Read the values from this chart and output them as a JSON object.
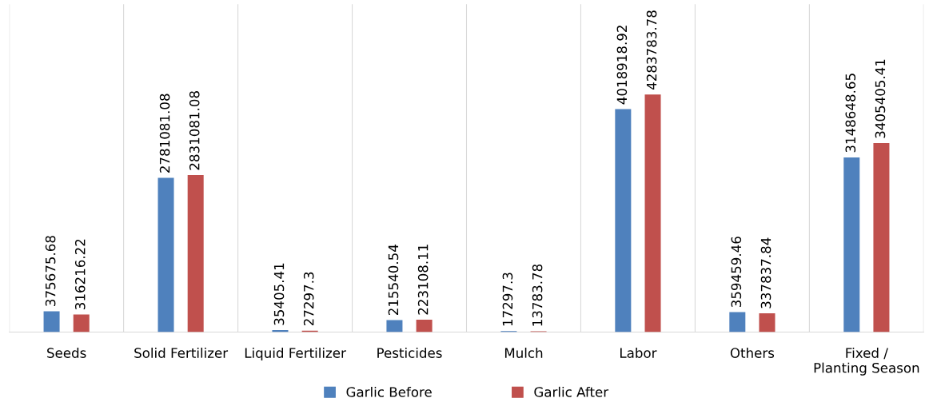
{
  "chart_data": {
    "type": "bar",
    "categories": [
      "Seeds",
      "Solid Fertilizer",
      "Liquid Fertilizer",
      "Pesticides",
      "Mulch",
      "Labor",
      "Others",
      "Fixed / Planting Season"
    ],
    "series": [
      {
        "name": "Garlic Before",
        "color": "#4f81bd",
        "values": [
          375675.68,
          2781081.08,
          35405.41,
          215540.54,
          17297.3,
          4018918.92,
          359459.46,
          3148648.65
        ]
      },
      {
        "name": "Garlic After",
        "color": "#c0504d",
        "values": [
          316216.22,
          2831081.08,
          27297.3,
          223108.11,
          13783.78,
          4283783.78,
          337837.84,
          3405405.41
        ]
      }
    ],
    "data_labels": true,
    "grid": "x",
    "legend": "bottom"
  }
}
